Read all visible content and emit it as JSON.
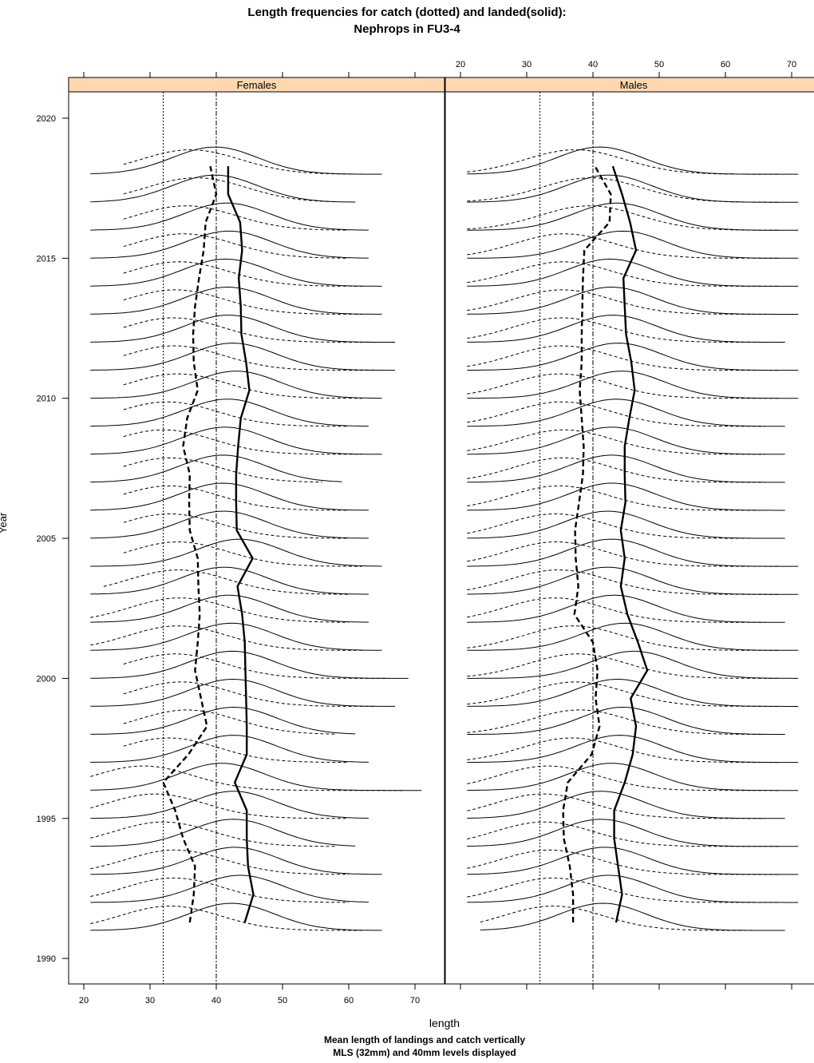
{
  "chart_data": {
    "type": "line",
    "title": "Length frequencies for catch (dotted) and landed(solid):",
    "subtitle": "Nephrops in FU3-4",
    "xlabel": "length",
    "ylabel": "Year",
    "caption_line1": "Mean length of landings and catch vertically",
    "caption_line2": "MLS (32mm) and 40mm levels displayed",
    "xlim": [
      17.5,
      75
    ],
    "ylim": [
      1989,
      2021
    ],
    "x_ticks": [
      20,
      30,
      40,
      50,
      60,
      70
    ],
    "y_ticks": [
      1990,
      1995,
      2000,
      2005,
      2010,
      2015,
      2020
    ],
    "reference_lines": [
      32,
      40
    ],
    "panels": [
      {
        "name": "Females",
        "years": [
          1991,
          1992,
          1993,
          1994,
          1995,
          1996,
          1997,
          1998,
          1999,
          2000,
          2001,
          2002,
          2003,
          2004,
          2005,
          2006,
          2007,
          2008,
          2009,
          2010,
          2011,
          2012,
          2013,
          2014,
          2015,
          2016,
          2017,
          2018
        ],
        "mean_landed": [
          44.3,
          45.6,
          44.8,
          44.6,
          44.6,
          42.8,
          44.6,
          44.6,
          44.5,
          44.4,
          44.3,
          43.9,
          43.2,
          45.5,
          43.1,
          43.0,
          43.0,
          43.3,
          43.7,
          45.0,
          44.5,
          43.8,
          43.7,
          43.4,
          43.9,
          43.6,
          41.8,
          41.8
        ],
        "mean_catch": [
          36.0,
          36.6,
          36.8,
          35.0,
          33.8,
          32.0,
          35.8,
          38.6,
          37.7,
          36.8,
          37.2,
          37.5,
          37.3,
          37.2,
          36.0,
          35.9,
          36.0,
          35.0,
          35.6,
          37.2,
          36.6,
          36.5,
          36.8,
          37.4,
          38.1,
          38.4,
          40.0,
          39.1
        ],
        "landed_ranges": [
          [
            21,
            65
          ],
          [
            21,
            63
          ],
          [
            21,
            65
          ],
          [
            21,
            61
          ],
          [
            21,
            63
          ],
          [
            21,
            71
          ],
          [
            21,
            63
          ],
          [
            21,
            61
          ],
          [
            21,
            67
          ],
          [
            21,
            69
          ],
          [
            21,
            65
          ],
          [
            21,
            63
          ],
          [
            21,
            63
          ],
          [
            21,
            65
          ],
          [
            21,
            63
          ],
          [
            21,
            63
          ],
          [
            21,
            59
          ],
          [
            21,
            65
          ],
          [
            21,
            63
          ],
          [
            21,
            65
          ],
          [
            21,
            67
          ],
          [
            21,
            67
          ],
          [
            21,
            65
          ],
          [
            21,
            65
          ],
          [
            21,
            63
          ],
          [
            21,
            63
          ],
          [
            21,
            61
          ],
          [
            21,
            65
          ]
        ],
        "catch_ranges": [
          [
            21,
            62
          ],
          [
            21,
            60
          ],
          [
            21,
            60
          ],
          [
            21,
            58
          ],
          [
            21,
            60
          ],
          [
            21,
            68
          ],
          [
            26,
            60
          ],
          [
            26,
            58
          ],
          [
            26,
            64
          ],
          [
            26,
            66
          ],
          [
            21,
            62
          ],
          [
            21,
            60
          ],
          [
            23,
            60
          ],
          [
            26,
            62
          ],
          [
            26,
            60
          ],
          [
            26,
            60
          ],
          [
            26,
            56
          ],
          [
            26,
            62
          ],
          [
            26,
            60
          ],
          [
            26,
            62
          ],
          [
            26,
            64
          ],
          [
            26,
            64
          ],
          [
            26,
            62
          ],
          [
            26,
            62
          ],
          [
            26,
            60
          ],
          [
            26,
            60
          ],
          [
            26,
            58
          ],
          [
            26,
            62
          ]
        ]
      },
      {
        "name": "Males",
        "years": [
          1991,
          1992,
          1993,
          1994,
          1995,
          1996,
          1997,
          1998,
          1999,
          2000,
          2001,
          2002,
          2003,
          2004,
          2005,
          2006,
          2007,
          2008,
          2009,
          2010,
          2011,
          2012,
          2013,
          2014,
          2015,
          2016,
          2017,
          2018
        ],
        "mean_landed": [
          43.5,
          44.4,
          43.8,
          43.2,
          43.2,
          44.8,
          46.0,
          46.5,
          45.7,
          48.2,
          46.8,
          45.2,
          44.2,
          44.8,
          44.2,
          44.9,
          44.8,
          44.8,
          45.5,
          46.3,
          45.8,
          45.0,
          44.8,
          44.6,
          46.5,
          45.6,
          44.4,
          43.0
        ],
        "mean_catch": [
          37.0,
          37.0,
          36.5,
          35.6,
          35.5,
          36.2,
          39.8,
          41.0,
          40.4,
          40.7,
          40.0,
          37.2,
          37.8,
          37.4,
          37.3,
          37.9,
          38.5,
          38.6,
          38.3,
          38.0,
          38.3,
          38.3,
          38.4,
          38.5,
          38.7,
          42.5,
          42.7,
          40.3
        ],
        "landed_ranges": [
          [
            23,
            69
          ],
          [
            21,
            71
          ],
          [
            21,
            71
          ],
          [
            21,
            71
          ],
          [
            21,
            69
          ],
          [
            21,
            71
          ],
          [
            21,
            71
          ],
          [
            21,
            69
          ],
          [
            21,
            71
          ],
          [
            21,
            71
          ],
          [
            21,
            71
          ],
          [
            21,
            69
          ],
          [
            21,
            71
          ],
          [
            21,
            71
          ],
          [
            21,
            69
          ],
          [
            21,
            69
          ],
          [
            21,
            69
          ],
          [
            21,
            69
          ],
          [
            21,
            69
          ],
          [
            21,
            71
          ],
          [
            21,
            71
          ],
          [
            21,
            69
          ],
          [
            21,
            71
          ],
          [
            21,
            71
          ],
          [
            21,
            71
          ],
          [
            21,
            71
          ],
          [
            21,
            71
          ],
          [
            21,
            71
          ]
        ],
        "catch_ranges": [
          [
            23,
            66
          ],
          [
            21,
            68
          ],
          [
            21,
            68
          ],
          [
            21,
            68
          ],
          [
            21,
            66
          ],
          [
            21,
            68
          ],
          [
            21,
            68
          ],
          [
            21,
            66
          ],
          [
            21,
            68
          ],
          [
            21,
            68
          ],
          [
            21,
            68
          ],
          [
            21,
            66
          ],
          [
            21,
            68
          ],
          [
            21,
            68
          ],
          [
            21,
            66
          ],
          [
            21,
            66
          ],
          [
            21,
            66
          ],
          [
            21,
            66
          ],
          [
            21,
            66
          ],
          [
            21,
            68
          ],
          [
            21,
            68
          ],
          [
            21,
            66
          ],
          [
            21,
            68
          ],
          [
            21,
            68
          ],
          [
            21,
            68
          ],
          [
            21,
            68
          ],
          [
            21,
            68
          ],
          [
            21,
            68
          ]
        ]
      }
    ]
  }
}
